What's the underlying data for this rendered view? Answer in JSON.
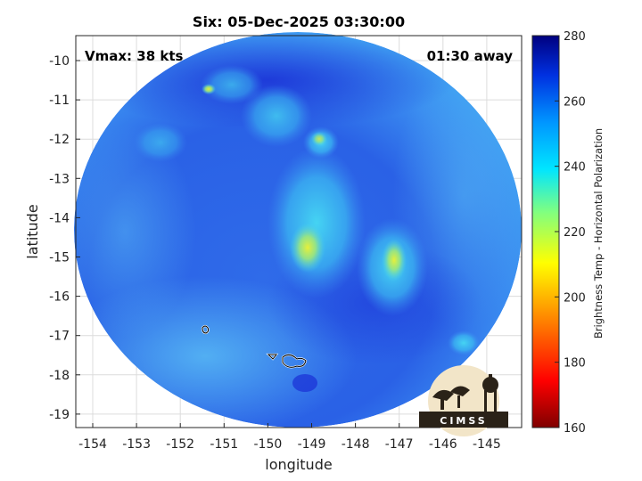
{
  "title": "Six: 05-Dec-2025 03:30:00",
  "vmax_label": "Vmax: 38 kts",
  "time_offset_label": "01:30 away",
  "x_axis": {
    "label": "longitude",
    "ticks": [
      "-154",
      "-153",
      "-152",
      "-151",
      "-150",
      "-149",
      "-148",
      "-147",
      "-146",
      "-145"
    ]
  },
  "y_axis": {
    "label": "latitude",
    "ticks": [
      "-10",
      "-11",
      "-12",
      "-13",
      "-14",
      "-15",
      "-16",
      "-17",
      "-18",
      "-19"
    ]
  },
  "colorbar": {
    "label": "Brightness Temp - Horizontal Polarization",
    "ticks": [
      "280",
      "260",
      "240",
      "220",
      "200",
      "180",
      "160"
    ],
    "min": 160,
    "max": 280,
    "colormap": "jet-reversed"
  },
  "logo": {
    "text": "CIMSS"
  },
  "colors": {
    "deep_blue": "#1a2fd6",
    "mid_blue": "#2e6ef0",
    "cyan": "#27c6ef",
    "yellow_green": "#b8ea3c",
    "background": "#ffffff"
  }
}
